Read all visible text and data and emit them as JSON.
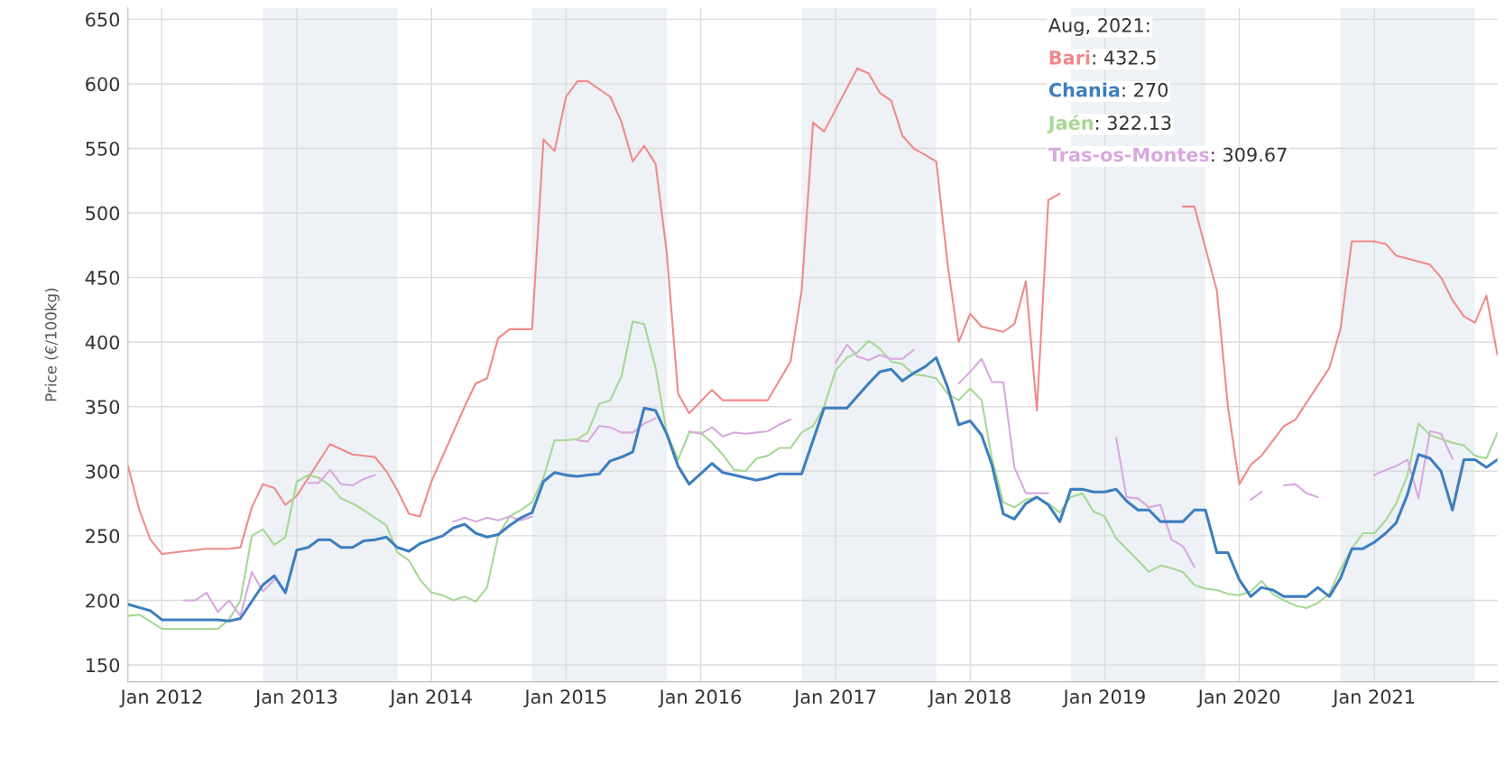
{
  "chart_data": {
    "type": "line",
    "ylabel": "Price (€/100kg)",
    "xlim": [
      "2011-10",
      "2021-12"
    ],
    "ylim": [
      137,
      659
    ],
    "xticks": [
      {
        "value": "2012-01",
        "label": "Jan 2012"
      },
      {
        "value": "2013-01",
        "label": "Jan 2013"
      },
      {
        "value": "2014-01",
        "label": "Jan 2014"
      },
      {
        "value": "2015-01",
        "label": "Jan 2015"
      },
      {
        "value": "2016-01",
        "label": "Jan 2016"
      },
      {
        "value": "2017-01",
        "label": "Jan 2017"
      },
      {
        "value": "2018-01",
        "label": "Jan 2018"
      },
      {
        "value": "2019-01",
        "label": "Jan 2019"
      },
      {
        "value": "2020-01",
        "label": "Jan 2020"
      },
      {
        "value": "2021-01",
        "label": "Jan 2021"
      }
    ],
    "yticks": [
      150,
      200,
      250,
      300,
      350,
      400,
      450,
      500,
      550,
      600,
      650
    ],
    "grid": true,
    "legend": false,
    "marker": "none",
    "line_style": "solid",
    "bands": [
      {
        "axis": "x",
        "from": "2012-10",
        "to": "2013-10",
        "color": "#eef1f5"
      },
      {
        "axis": "x",
        "from": "2014-10",
        "to": "2015-10",
        "color": "#eef1f5"
      },
      {
        "axis": "x",
        "from": "2016-10",
        "to": "2017-10",
        "color": "#eef1f5"
      },
      {
        "axis": "x",
        "from": "2018-10",
        "to": "2019-10",
        "color": "#eef1f5"
      },
      {
        "axis": "x",
        "from": "2020-10",
        "to": "2021-10",
        "color": "#eef1f5"
      }
    ],
    "annotations": [
      "Aug, 2021:",
      ": 432.5",
      ": 270",
      ": 322.13",
      ": 309.67"
    ],
    "series": [
      {
        "name": "Bari",
        "color": "#f08a8a",
        "x": [
          "2011-10",
          "2011-11",
          "2011-12",
          "2012-01",
          "2012-03",
          "2012-05",
          "2012-07",
          "2012-08",
          "2012-09",
          "2012-10",
          "2012-11",
          "2012-12",
          "2013-01",
          "2013-04",
          "2013-06",
          "2013-08",
          "2013-09",
          "2013-10",
          "2013-11",
          "2013-12",
          "2014-01",
          "2014-04",
          "2014-05",
          "2014-06",
          "2014-07",
          "2014-08",
          "2014-09",
          "2014-10",
          "2014-11",
          "2014-12",
          "2015-01",
          "2015-02",
          "2015-03",
          "2015-05",
          "2015-06",
          "2015-07",
          "2015-08",
          "2015-09",
          "2015-10",
          "2015-11",
          "2015-12",
          "2016-01",
          "2016-02",
          "2016-03",
          "2016-05",
          "2016-07",
          "2016-09",
          "2016-10",
          "2016-11",
          "2016-12",
          "2017-01",
          "2017-03",
          "2017-04",
          "2017-05",
          "2017-06",
          "2017-07",
          "2017-08",
          "2017-10",
          "2017-11",
          "2017-12",
          "2018-01",
          "2018-02",
          "2018-04",
          "2018-05",
          "2018-06",
          "2018-07",
          "2018-08",
          "2018-09",
          "2018-10",
          "2019-07",
          "2019-08",
          "2019-09",
          "2019-11",
          "2019-12",
          "2020-01",
          "2020-02",
          "2020-03",
          "2020-05",
          "2020-06",
          "2020-09",
          "2020-10",
          "2020-11",
          "2021-01",
          "2021-02",
          "2021-03",
          "2021-06",
          "2021-07",
          "2021-08",
          "2021-09",
          "2021-10",
          "2021-11",
          "2021-12"
        ],
        "values": [
          304,
          270,
          247,
          236,
          238,
          240,
          240,
          241,
          272,
          290,
          287,
          274,
          281,
          321,
          313,
          311,
          300,
          285,
          267,
          265,
          292,
          350,
          368,
          372,
          403,
          410,
          410,
          410,
          557,
          548,
          590,
          602,
          602,
          590,
          570,
          540,
          552,
          538,
          470,
          360,
          345,
          354,
          363,
          355,
          355,
          355,
          385,
          440,
          570,
          563,
          580,
          612,
          608,
          593,
          587,
          560,
          550,
          540,
          460,
          400,
          422,
          412,
          408,
          414,
          447,
          347,
          510,
          515,
          null,
          null,
          505,
          505,
          440,
          350,
          290,
          305,
          312,
          335,
          340,
          380,
          410,
          478,
          478,
          476,
          467,
          460,
          450,
          432.5,
          420,
          415,
          436,
          390
        ]
      },
      {
        "name": "Chania",
        "color": "#3d7ebf",
        "x": [
          "2011-10",
          "2011-12",
          "2012-01",
          "2012-06",
          "2012-07",
          "2012-08",
          "2012-10",
          "2012-11",
          "2012-12",
          "2013-01",
          "2013-02",
          "2013-03",
          "2013-04",
          "2013-05",
          "2013-06",
          "2013-07",
          "2013-08",
          "2013-09",
          "2013-10",
          "2013-11",
          "2013-12",
          "2014-01",
          "2014-02",
          "2014-03",
          "2014-04",
          "2014-05",
          "2014-06",
          "2014-07",
          "2014-08",
          "2014-09",
          "2014-10",
          "2014-11",
          "2014-12",
          "2015-01",
          "2015-02",
          "2015-03",
          "2015-04",
          "2015-05",
          "2015-06",
          "2015-07",
          "2015-08",
          "2015-09",
          "2015-10",
          "2015-11",
          "2015-12",
          "2016-01",
          "2016-02",
          "2016-03",
          "2016-04",
          "2016-05",
          "2016-06",
          "2016-07",
          "2016-08",
          "2016-09",
          "2016-10",
          "2016-12",
          "2017-02",
          "2017-03",
          "2017-04",
          "2017-05",
          "2017-06",
          "2017-07",
          "2017-08",
          "2017-09",
          "2017-10",
          "2017-11",
          "2017-12",
          "2018-01",
          "2018-02",
          "2018-03",
          "2018-04",
          "2018-05",
          "2018-06",
          "2018-07",
          "2018-08",
          "2018-09",
          "2018-10",
          "2018-11",
          "2018-12",
          "2019-01",
          "2019-02",
          "2019-03",
          "2019-04",
          "2019-05",
          "2019-06",
          "2019-07",
          "2019-08",
          "2019-09",
          "2019-10",
          "2019-11",
          "2019-12",
          "2020-01",
          "2020-02",
          "2020-03",
          "2020-04",
          "2020-05",
          "2020-06",
          "2020-07",
          "2020-08",
          "2020-09",
          "2020-10",
          "2020-11",
          "2020-12",
          "2021-01",
          "2021-02",
          "2021-03",
          "2021-04",
          "2021-05",
          "2021-06",
          "2021-07",
          "2021-08",
          "2021-09",
          "2021-10",
          "2021-11",
          "2021-12"
        ],
        "values": [
          197,
          192,
          185,
          185,
          184,
          186,
          212,
          219,
          206,
          239,
          241,
          247,
          247,
          241,
          241,
          246,
          247,
          249,
          241,
          238,
          244,
          247,
          250,
          256,
          259,
          252,
          249,
          251,
          258,
          264,
          268,
          292,
          299,
          297,
          296,
          297,
          298,
          308,
          311,
          315,
          349,
          347,
          329,
          304,
          290,
          298,
          306,
          299,
          297,
          295,
          293,
          295,
          298,
          298,
          298,
          349,
          349,
          358,
          368,
          377,
          379,
          370,
          376,
          381,
          388,
          365,
          336,
          339,
          328,
          305,
          267,
          263,
          275,
          280,
          274,
          261,
          286,
          286,
          284,
          284,
          286,
          277,
          270,
          270,
          261,
          261,
          261,
          270,
          270,
          237,
          237,
          216,
          203,
          210,
          208,
          203,
          203,
          203,
          210,
          203,
          217,
          240,
          240,
          245,
          252,
          260,
          282,
          313,
          310,
          300,
          270,
          309,
          309,
          303,
          309
        ]
      },
      {
        "name": "Jaén",
        "color": "#a6d894",
        "x": [
          "2011-10",
          "2011-11",
          "2012-01",
          "2012-06",
          "2012-07",
          "2012-08",
          "2012-09",
          "2012-10",
          "2012-11",
          "2012-12",
          "2013-01",
          "2013-02",
          "2013-03",
          "2013-04",
          "2013-05",
          "2013-06",
          "2013-07",
          "2013-08",
          "2013-09",
          "2013-10",
          "2013-11",
          "2013-12",
          "2014-01",
          "2014-02",
          "2014-03",
          "2014-04",
          "2014-05",
          "2014-06",
          "2014-07",
          "2014-08",
          "2014-09",
          "2014-10",
          "2014-11",
          "2014-12",
          "2015-01",
          "2015-02",
          "2015-03",
          "2015-04",
          "2015-05",
          "2015-06",
          "2015-07",
          "2015-08",
          "2015-09",
          "2015-10",
          "2015-11",
          "2015-12",
          "2016-01",
          "2016-02",
          "2016-03",
          "2016-04",
          "2016-05",
          "2016-06",
          "2016-07",
          "2016-08",
          "2016-09",
          "2016-10",
          "2016-11",
          "2016-12",
          "2017-01",
          "2017-02",
          "2017-03",
          "2017-04",
          "2017-05",
          "2017-06",
          "2017-07",
          "2017-08",
          "2017-09",
          "2017-10",
          "2017-11",
          "2017-12",
          "2018-01",
          "2018-02",
          "2018-03",
          "2018-04",
          "2018-05",
          "2018-06",
          "2018-07",
          "2018-08",
          "2018-09",
          "2018-10",
          "2018-11",
          "2018-12",
          "2019-01",
          "2019-02",
          "2019-03",
          "2019-04",
          "2019-05",
          "2019-06",
          "2019-07",
          "2019-08",
          "2019-09",
          "2019-10",
          "2019-11",
          "2019-12",
          "2020-01",
          "2020-02",
          "2020-03",
          "2020-04",
          "2020-05",
          "2020-06",
          "2020-07",
          "2020-08",
          "2020-09",
          "2020-10",
          "2020-11",
          "2020-12",
          "2021-01",
          "2021-02",
          "2021-03",
          "2021-04",
          "2021-05",
          "2021-06",
          "2021-07",
          "2021-08",
          "2021-09",
          "2021-10",
          "2021-11",
          "2021-12"
        ],
        "values": [
          188,
          189,
          178,
          178,
          185,
          200,
          250,
          255,
          243,
          249,
          292,
          297,
          295,
          289,
          279,
          275,
          270,
          264,
          258,
          237,
          231,
          216,
          206,
          204,
          200,
          203,
          199,
          210,
          250,
          265,
          270,
          276,
          295,
          324,
          324,
          325,
          330,
          352,
          355,
          374,
          416,
          414,
          380,
          330,
          309,
          330,
          330,
          322,
          313,
          301,
          300,
          310,
          312,
          318,
          318,
          330,
          335,
          350,
          378,
          388,
          392,
          401,
          395,
          385,
          383,
          375,
          374,
          372,
          360,
          355,
          364,
          355,
          310,
          276,
          272,
          278,
          280,
          275,
          268,
          280,
          283,
          269,
          265,
          248,
          240,
          231,
          222,
          227,
          225,
          222,
          212,
          209,
          208,
          205,
          204,
          207,
          215,
          205,
          200,
          196,
          194,
          198,
          205,
          224,
          240,
          252,
          252,
          262,
          275,
          297,
          337,
          328,
          325,
          322.13,
          320,
          312,
          310,
          330
        ]
      },
      {
        "name": "Tras-os-Montes",
        "color": "#d9a8df",
        "x": [
          "2012-03",
          "2012-04",
          "2012-05",
          "2012-06",
          "2012-07",
          "2012-08",
          "2012-09",
          "2012-10",
          "2012-11",
          "2012-12",
          "2013-02",
          "2013-03",
          "2013-04",
          "2013-05",
          "2013-06",
          "2013-07",
          "2013-08",
          "2013-09",
          "2014-03",
          "2014-04",
          "2014-05",
          "2014-06",
          "2014-07",
          "2014-08",
          "2014-09",
          "2014-10",
          "2014-11",
          "2015-02",
          "2015-03",
          "2015-04",
          "2015-05",
          "2015-06",
          "2015-07",
          "2015-08",
          "2015-09",
          "2015-10",
          "2015-12",
          "2016-01",
          "2016-02",
          "2016-03",
          "2016-04",
          "2016-05",
          "2016-06",
          "2016-07",
          "2016-08",
          "2016-09",
          "2016-10",
          "2017-01",
          "2017-02",
          "2017-03",
          "2017-04",
          "2017-05",
          "2017-06",
          "2017-07",
          "2017-08",
          "2017-09",
          "2017-12",
          "2018-01",
          "2018-02",
          "2018-03",
          "2018-04",
          "2018-05",
          "2018-06",
          "2018-07",
          "2018-08",
          "2018-09",
          "2019-02",
          "2019-03",
          "2019-04",
          "2019-05",
          "2019-06",
          "2019-07",
          "2019-08",
          "2019-09",
          "2019-10",
          "2020-02",
          "2020-03",
          "2020-04",
          "2020-05",
          "2020-06",
          "2020-07",
          "2020-08",
          "2020-09",
          "2021-01",
          "2021-02",
          "2021-03",
          "2021-04",
          "2021-05",
          "2021-06",
          "2021-07",
          "2021-08"
        ],
        "values": [
          200,
          200,
          206,
          191,
          200,
          188,
          222,
          207,
          216,
          null,
          291,
          291,
          301,
          290,
          289,
          294,
          297,
          null,
          261,
          264,
          261,
          264,
          262,
          265,
          262,
          265,
          null,
          324,
          323,
          335,
          334,
          330,
          330,
          337,
          341,
          null,
          331,
          329,
          334,
          327,
          330,
          329,
          330,
          331,
          336,
          340,
          null,
          384,
          398,
          389,
          386,
          390,
          387,
          387,
          394,
          null,
          368,
          377,
          387,
          369,
          369,
          303,
          283,
          283,
          283,
          null,
          326,
          280,
          279,
          272,
          274,
          247,
          242,
          226,
          null,
          278,
          284,
          null,
          289,
          290,
          283,
          280,
          null,
          297,
          301,
          304,
          309,
          279,
          331,
          329,
          309.67
        ]
      }
    ]
  }
}
